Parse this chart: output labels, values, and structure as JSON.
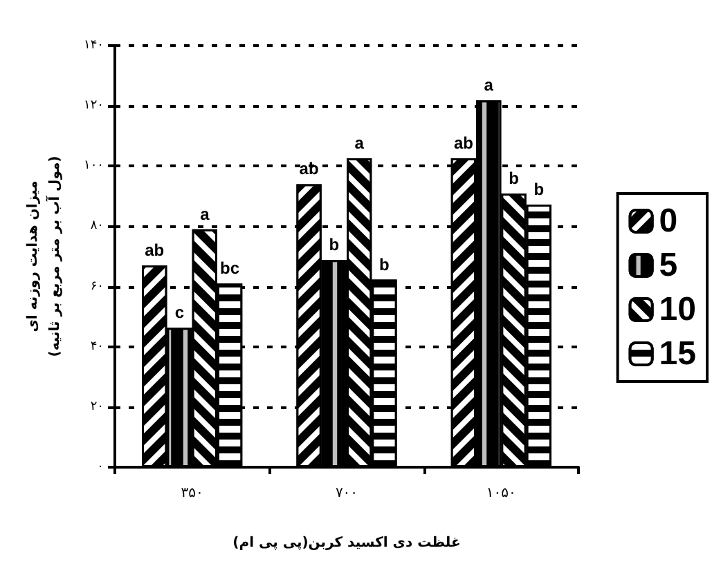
{
  "chart_data": {
    "type": "bar",
    "xlabel": "غلظت دی اکسید کربن(پی پی ام)",
    "ylabel": "میزان هدایت روزنه ای\n(مول آب بر متر مربع بر ثانیه)",
    "categories": [
      "۳۵۰",
      "۷۰۰",
      "۱۰۵۰"
    ],
    "series": [
      {
        "name": "0",
        "color": "#000000",
        "values": [
          67,
          94,
          102.6
        ],
        "value_labels": [
          "ab",
          "ab",
          "ab"
        ]
      },
      {
        "name": "5",
        "color": "#000000",
        "values": [
          46.3,
          68.8,
          121.8
        ],
        "value_labels": [
          "c",
          "b",
          "a"
        ]
      },
      {
        "name": "10",
        "color": "#000000",
        "values": [
          79,
          102.6,
          90.9
        ],
        "value_labels": [
          "a",
          "a",
          "b"
        ]
      },
      {
        "name": "15",
        "color": "#000000",
        "values": [
          61,
          62.3,
          87.2
        ],
        "value_labels": [
          "bc",
          "b",
          "b"
        ]
      }
    ],
    "ylim": [
      0,
      140
    ],
    "yticks": [
      {
        "value": 0,
        "label": "۰"
      },
      {
        "value": 20,
        "label": "۲۰"
      },
      {
        "value": 40,
        "label": "۴۰"
      },
      {
        "value": 60,
        "label": "۶۰"
      },
      {
        "value": 80,
        "label": "۸۰"
      },
      {
        "value": 100,
        "label": "۱۰۰"
      },
      {
        "value": 120,
        "label": "۱۲۰"
      },
      {
        "value": 140,
        "label": "۱۴۰"
      }
    ],
    "grid": "y",
    "legend": "right"
  }
}
